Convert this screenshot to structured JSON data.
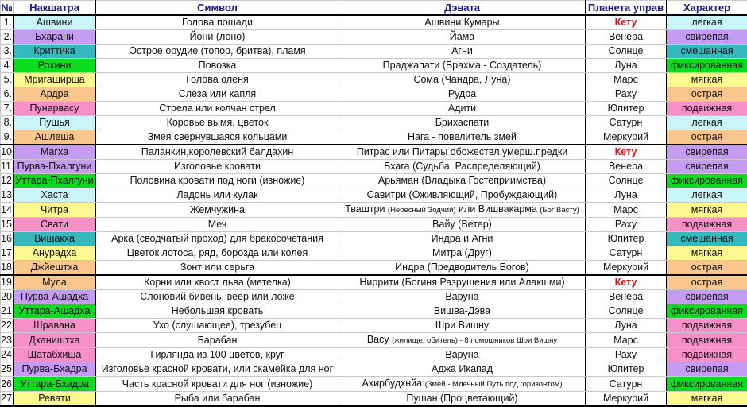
{
  "headers": {
    "num": "№",
    "nakshatra": "Накшатра",
    "symbol": "Символ",
    "deva": "Дэвата",
    "planet": "Планета управ",
    "character": "Характер"
  },
  "colors": {
    "легкая": "#c9f5f7",
    "свирепая": "#c59cf2",
    "смешанная": "#36b9bd",
    "фиксированная": "#0bdc1e",
    "мягкая": "#fbf88f",
    "острая": "#f9c78e",
    "подвижная": "#f590c8",
    "ketu": "#e01010",
    "header": "#1a1a8c"
  },
  "rows": [
    {
      "num": "1.",
      "name": "Ашвини",
      "symbol": "Голова пошади",
      "deva": [
        {
          "t": "Ашвини Кумары"
        }
      ],
      "planet": "Кету",
      "character": "легкая"
    },
    {
      "num": "2.",
      "name": "Бхарани",
      "symbol": "Йони (лоно)",
      "deva": [
        {
          "t": "Йама"
        }
      ],
      "planet": "Венера",
      "character": "свирепая"
    },
    {
      "num": "3.",
      "name": "Криттика",
      "symbol": "Острое орудие (топор, бритва), пламя",
      "deva": [
        {
          "t": "Агни"
        }
      ],
      "planet": "Солнце",
      "character": "смешанная"
    },
    {
      "num": "4.",
      "name": "Рохини",
      "symbol": "Повозка",
      "deva": [
        {
          "t": "Праджапати (Брахма - Создатель)"
        }
      ],
      "planet": "Луна",
      "character": "фиксированная"
    },
    {
      "num": "5.",
      "name": "Мригаширша",
      "symbol": "Голова оленя",
      "deva": [
        {
          "t": "Сома (Чандра, Луна)"
        }
      ],
      "planet": "Марс",
      "character": "мягкая"
    },
    {
      "num": "6.",
      "name": "Ардра",
      "symbol": "Слеза или капля",
      "deva": [
        {
          "t": "Рудра"
        }
      ],
      "planet": "Раху",
      "character": "острая"
    },
    {
      "num": "7.",
      "name": "Пунарвасу",
      "symbol": "Стрела или колчан стрел",
      "deva": [
        {
          "t": "Адити"
        }
      ],
      "planet": "Юпитер",
      "character": "подвижная"
    },
    {
      "num": "8.",
      "name": "Пушья",
      "symbol": "Коровье вымя, цветок",
      "deva": [
        {
          "t": "Брихаспати"
        }
      ],
      "planet": "Сатурн",
      "character": "легкая"
    },
    {
      "num": "9.",
      "name": "Ашлеша",
      "symbol": "Змея свернувшаяся кольцами",
      "deva": [
        {
          "t": "Нага - повелитель змей"
        }
      ],
      "planet": "Меркурий",
      "character": "острая"
    },
    {
      "num": "10.",
      "name": "Магха",
      "symbol": "Паланкин,королевский балдахин",
      "deva": [
        {
          "t": "Питрас или Питары обожествл.умерш.предки"
        }
      ],
      "planet": "Кету",
      "character": "свирепая"
    },
    {
      "num": "11.",
      "name": "Пурва-Пхалгуни",
      "symbol": "Изголовье кровати",
      "deva": [
        {
          "t": "Бхага (Судьба, Распределяющий)"
        }
      ],
      "planet": "Венера",
      "character": "свирепая"
    },
    {
      "num": "12.",
      "name": "Уттара-Пхалгуни",
      "symbol": "Половина кровати под ноги (изножие)",
      "deva": [
        {
          "t": "Арьяман (Владыка Гостеприимства)"
        }
      ],
      "planet": "Солнце",
      "character": "фиксированная"
    },
    {
      "num": "13.",
      "name": "Хаста",
      "symbol": "Ладонь или кулак",
      "deva": [
        {
          "t": "Савитри (Оживляющий, Пробуждающий)"
        }
      ],
      "planet": "Луна",
      "character": "легкая"
    },
    {
      "num": "14.",
      "name": "Читра",
      "symbol": "Жемчужина",
      "deva": [
        {
          "t": "Тваштри "
        },
        {
          "t": "(Небесный Зодчий)",
          "small": true
        },
        {
          "t": " или Вишвакарма "
        },
        {
          "t": "(Бог Васту)",
          "small": true
        }
      ],
      "planet": "Марс",
      "character": "мягкая"
    },
    {
      "num": "15.",
      "name": "Свати",
      "symbol": "Меч",
      "deva": [
        {
          "t": "Вайу (Ветер)"
        }
      ],
      "planet": "Раху",
      "character": "подвижная"
    },
    {
      "num": "16.",
      "name": "Вишакха",
      "symbol": "Арка (сводчатый проход) для бракосочетания",
      "deva": [
        {
          "t": "Индра и Агни"
        }
      ],
      "planet": "Юпитер",
      "character": "смешанная"
    },
    {
      "num": "17.",
      "name": "Анурадха",
      "symbol": "Цветок лотоса, ряд, борозда или колея",
      "deva": [
        {
          "t": "Митра (Друг)"
        }
      ],
      "planet": "Сатурн",
      "character": "мягкая"
    },
    {
      "num": "18.",
      "name": "Джйештха",
      "symbol": "Зонт или серьга",
      "deva": [
        {
          "t": "Индра (Предводитель Богов)"
        }
      ],
      "planet": "Меркурий",
      "character": "острая"
    },
    {
      "num": "19.",
      "name": "Мула",
      "symbol": "Корни или хвост льва (метелка)",
      "deva": [
        {
          "t": "Ниррити (Богиня Разрушения или Алакшми)"
        }
      ],
      "planet": "Кету",
      "character": "острая"
    },
    {
      "num": "20.",
      "name": "Пурва-Ашадха",
      "symbol": "Слоновий бивень, веер или ложе",
      "deva": [
        {
          "t": "Варуна"
        }
      ],
      "planet": "Венера",
      "character": "свирепая"
    },
    {
      "num": "21.",
      "name": "Уттара-Ашадха",
      "symbol": "Небольшая кровать",
      "deva": [
        {
          "t": "Вишва-Дэва"
        }
      ],
      "planet": "Солнце",
      "character": "фиксированная"
    },
    {
      "num": "22.",
      "name": "Шравана",
      "symbol": "Ухо (слушающее), трезубец",
      "deva": [
        {
          "t": "Шри Вишну"
        }
      ],
      "planet": "Луна",
      "character": "подвижная"
    },
    {
      "num": "23.",
      "name": "Дхаништха",
      "symbol": "Барабан",
      "deva": [
        {
          "t": "Васу "
        },
        {
          "t": "(жилище, обитель) - 8 помошников Шри Вишну",
          "small": true
        }
      ],
      "planet": "Марс",
      "character": "подвижная"
    },
    {
      "num": "24.",
      "name": "Шатабхиша",
      "symbol": "Гирлянда из 100 цветов, круг",
      "deva": [
        {
          "t": "Варуна"
        }
      ],
      "planet": "Раху",
      "character": "подвижная"
    },
    {
      "num": "25.",
      "name": "Пурва-Бхадра",
      "symbol": "Изголовье красной кровати, или скамейка для ног",
      "deva": [
        {
          "t": "Аджа Икапад"
        }
      ],
      "planet": "Юпитер",
      "character": "свирепая"
    },
    {
      "num": "26.",
      "name": "Уттара-Бхадра",
      "symbol": "Часть красной кровати для ног (изножие)",
      "deva": [
        {
          "t": "Ахирбудхнйа "
        },
        {
          "t": "(Змей - Млечный Путь под горизонтом)",
          "small": true
        }
      ],
      "planet": "Сатурн",
      "character": "фиксированная"
    },
    {
      "num": "27.",
      "name": "Ревати",
      "symbol": "Рыба или барабан",
      "deva": [
        {
          "t": "Пушан (Процветающий)"
        }
      ],
      "planet": "Меркурий",
      "character": "мягкая"
    }
  ]
}
